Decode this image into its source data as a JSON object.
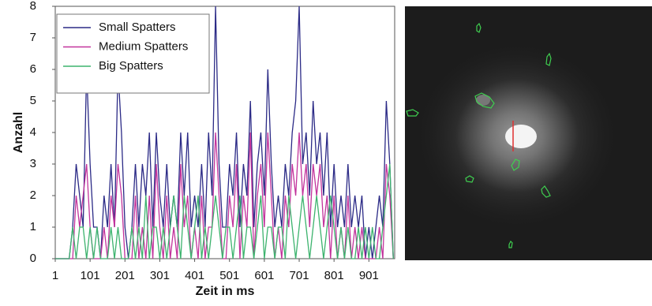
{
  "chart_data": {
    "type": "line",
    "xlabel": "Zeit in ms",
    "ylabel": "Anzahl",
    "x": [
      1,
      11,
      21,
      31,
      41,
      51,
      61,
      71,
      81,
      91,
      101,
      111,
      121,
      131,
      141,
      151,
      161,
      171,
      181,
      191,
      201,
      211,
      221,
      231,
      241,
      251,
      261,
      271,
      281,
      291,
      301,
      311,
      321,
      331,
      341,
      351,
      361,
      371,
      381,
      391,
      401,
      411,
      421,
      431,
      441,
      451,
      461,
      471,
      481,
      491,
      501,
      511,
      521,
      531,
      541,
      551,
      561,
      571,
      581,
      591,
      601,
      611,
      621,
      631,
      641,
      651,
      661,
      671,
      681,
      691,
      701,
      711,
      721,
      731,
      741,
      751,
      761,
      771,
      781,
      791,
      801,
      811,
      821,
      831,
      841,
      851,
      861,
      871,
      881,
      891,
      901,
      911,
      921,
      931,
      941,
      951,
      961,
      971
    ],
    "series": [
      {
        "name": "Small Spatters",
        "color": "#2b2a86",
        "values": [
          0,
          0,
          0,
          0,
          0,
          1,
          3,
          2,
          1,
          6,
          3,
          1,
          1,
          0,
          2,
          1,
          3,
          1,
          6,
          4,
          1,
          0,
          1,
          3,
          1,
          3,
          2,
          4,
          1,
          4,
          2,
          1,
          3,
          1,
          2,
          1,
          4,
          2,
          4,
          1,
          2,
          1,
          3,
          1,
          4,
          2,
          8,
          3,
          1,
          1,
          3,
          2,
          4,
          1,
          3,
          2,
          5,
          1,
          3,
          4,
          2,
          6,
          3,
          1,
          2,
          1,
          3,
          2,
          4,
          5,
          8,
          3,
          4,
          2,
          5,
          3,
          4,
          2,
          4,
          1,
          3,
          1,
          2,
          1,
          3,
          1,
          2,
          1,
          2,
          0,
          1,
          0,
          1,
          2,
          1,
          5,
          3,
          0
        ]
      },
      {
        "name": "Medium Spatters",
        "color": "#c2339c",
        "values": [
          0,
          0,
          0,
          0,
          0,
          0,
          2,
          1,
          2,
          3,
          1,
          0,
          0,
          0,
          1,
          0,
          2,
          1,
          3,
          2,
          0,
          0,
          0,
          2,
          0,
          1,
          0,
          2,
          0,
          3,
          1,
          0,
          2,
          0,
          1,
          0,
          3,
          1,
          2,
          0,
          1,
          0,
          2,
          0,
          1,
          1,
          4,
          2,
          0,
          0,
          2,
          1,
          3,
          0,
          2,
          1,
          4,
          0,
          2,
          3,
          1,
          4,
          2,
          0,
          1,
          0,
          2,
          1,
          3,
          2,
          4,
          2,
          3,
          1,
          3,
          2,
          3,
          1,
          2,
          0,
          2,
          0,
          1,
          0,
          2,
          0,
          1,
          0,
          1,
          0,
          0,
          0,
          0,
          1,
          0,
          3,
          2,
          0
        ]
      },
      {
        "name": "Big Spatters",
        "color": "#3db36e",
        "values": [
          0,
          0,
          0,
          0,
          0,
          1,
          0,
          1,
          1,
          0,
          1,
          0,
          1,
          0,
          0,
          0,
          1,
          0,
          1,
          0,
          0,
          0,
          1,
          0,
          1,
          0,
          2,
          0,
          1,
          1,
          0,
          1,
          0,
          1,
          2,
          1,
          0,
          2,
          1,
          0,
          1,
          2,
          0,
          1,
          0,
          1,
          2,
          1,
          0,
          1,
          1,
          0,
          1,
          2,
          0,
          1,
          1,
          0,
          1,
          2,
          0,
          1,
          1,
          0,
          1,
          1,
          0,
          2,
          1,
          0,
          1,
          2,
          1,
          0,
          1,
          2,
          1,
          0,
          1,
          2,
          1,
          0,
          1,
          0,
          1,
          0,
          0,
          1,
          0,
          1,
          0,
          1,
          0,
          0,
          1,
          2,
          3,
          0
        ]
      }
    ],
    "xlim": [
      1,
      975
    ],
    "xticks": [
      1,
      101,
      201,
      301,
      401,
      501,
      601,
      701,
      801,
      901
    ],
    "ylim": [
      0,
      8
    ],
    "yticks": [
      0,
      1,
      2,
      3,
      4,
      5,
      6,
      7,
      8
    ],
    "legend": "upper-left"
  }
}
